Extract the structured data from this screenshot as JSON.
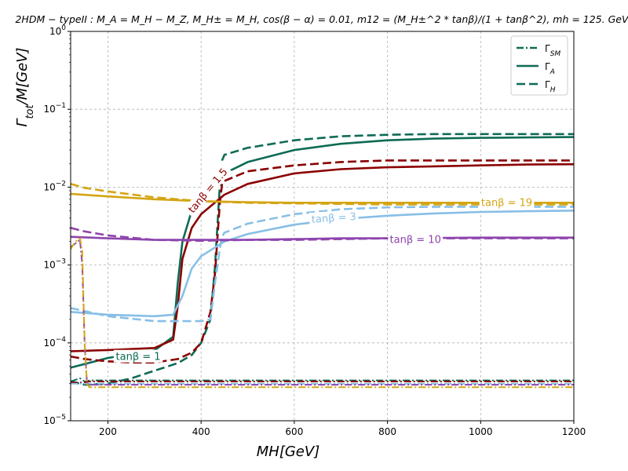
{
  "chart_data": {
    "type": "line",
    "title": "2HDM − typeII : M_A = M_H − M_Z, M_H± = M_H, cos(β − α) = 0.01, m12 = (M_H±^2 * tanβ)/(1 + tanβ^2), mh = 125. GeV",
    "xlabel": "MH[GeV]",
    "ylabel": "Γ_tot / M [GeV]",
    "xlim": [
      120,
      1200
    ],
    "ylim": [
      1e-05,
      1
    ],
    "yscale": "log",
    "grid": true,
    "legend_position": "top-right",
    "x_ticks": [
      200,
      400,
      600,
      800,
      1000,
      1200
    ],
    "y_ticks": [
      {
        "value": 1e-05,
        "base": "10",
        "exp": "−5"
      },
      {
        "value": 0.0001,
        "base": "10",
        "exp": "−4"
      },
      {
        "value": 0.001,
        "base": "10",
        "exp": "−3"
      },
      {
        "value": 0.01,
        "base": "10",
        "exp": "−2"
      },
      {
        "value": 0.1,
        "base": "10",
        "exp": "−1"
      },
      {
        "value": 1,
        "base": "10",
        "exp": "0"
      }
    ],
    "legend": [
      {
        "style": "dashdot",
        "base": "Γ",
        "sub": "SM"
      },
      {
        "style": "solid",
        "base": "Γ",
        "sub": "A"
      },
      {
        "style": "dashed",
        "base": "Γ",
        "sub": "H"
      }
    ],
    "series": [
      {
        "tanb": "1",
        "color": "#0e6b55",
        "A": {
          "x": [
            120,
            200,
            300,
            340,
            350,
            360,
            380,
            400,
            450,
            500,
            600,
            700,
            800,
            900,
            1000,
            1100,
            1200
          ],
          "y": [
            4.8e-05,
            6.4e-05,
            8e-05,
            0.00012,
            0.0006,
            0.002,
            0.005,
            0.008,
            0.015,
            0.021,
            0.03,
            0.036,
            0.04,
            0.042,
            0.043,
            0.0435,
            0.044
          ]
        },
        "H": {
          "x": [
            120,
            150,
            200,
            250,
            300,
            350,
            380,
            400,
            420,
            430,
            440,
            445,
            450,
            500,
            600,
            700,
            800,
            900,
            1000,
            1100,
            1200
          ],
          "y": [
            3.2e-05,
            2.9e-05,
            3e-05,
            3.5e-05,
            4.4e-05,
            5.5e-05,
            7e-05,
            0.0001,
            0.0002,
            0.001,
            0.01,
            0.022,
            0.026,
            0.032,
            0.04,
            0.045,
            0.047,
            0.048,
            0.048,
            0.048,
            0.048
          ]
        },
        "SM": {
          "x": [
            120,
            140,
            150,
            155,
            160,
            200,
            400,
            600,
            800,
            1000,
            1200
          ],
          "y": [
            3.2e-05,
            3.5e-05,
            3.2e-05,
            3.2e-05,
            3.3e-05,
            3.3e-05,
            3.3e-05,
            3.3e-05,
            3.3e-05,
            3.3e-05,
            3.3e-05
          ]
        }
      },
      {
        "tanb": "1.5",
        "color": "#8b0000",
        "A": {
          "x": [
            120,
            200,
            300,
            340,
            350,
            360,
            380,
            400,
            450,
            500,
            600,
            700,
            800,
            900,
            1000,
            1100,
            1200
          ],
          "y": [
            7.8e-05,
            8.1e-05,
            8.6e-05,
            0.00011,
            0.0003,
            0.0012,
            0.003,
            0.0045,
            0.008,
            0.011,
            0.015,
            0.017,
            0.018,
            0.0185,
            0.019,
            0.0195,
            0.0197
          ]
        },
        "H": {
          "x": [
            120,
            150,
            200,
            250,
            300,
            350,
            380,
            400,
            420,
            430,
            440,
            445,
            450,
            500,
            600,
            700,
            800,
            900,
            1000,
            1100,
            1200
          ],
          "y": [
            6.7e-05,
            6.2e-05,
            5.8e-05,
            5.6e-05,
            5.6e-05,
            6.2e-05,
            7.5e-05,
            0.0001,
            0.00025,
            0.0008,
            0.006,
            0.011,
            0.012,
            0.016,
            0.019,
            0.021,
            0.022,
            0.022,
            0.022,
            0.022,
            0.022
          ]
        },
        "SM": {
          "x": [
            120,
            150,
            160,
            200,
            400,
            600,
            800,
            1000,
            1200
          ],
          "y": [
            3.1e-05,
            3.1e-05,
            3.2e-05,
            3.2e-05,
            3.2e-05,
            3.2e-05,
            3.2e-05,
            3.2e-05,
            3.2e-05
          ]
        }
      },
      {
        "tanb": "3",
        "color": "#87bfe6",
        "A": {
          "x": [
            120,
            200,
            300,
            340,
            360,
            380,
            400,
            450,
            500,
            600,
            700,
            800,
            900,
            1000,
            1100,
            1200
          ],
          "y": [
            0.00025,
            0.00023,
            0.00022,
            0.00023,
            0.0004,
            0.0009,
            0.0013,
            0.002,
            0.0025,
            0.0033,
            0.0039,
            0.0043,
            0.0046,
            0.0048,
            0.0049,
            0.005
          ]
        },
        "H": {
          "x": [
            120,
            200,
            300,
            400,
            420,
            430,
            440,
            445,
            450,
            500,
            600,
            700,
            800,
            900,
            1000,
            1100,
            1200
          ],
          "y": [
            0.00028,
            0.00022,
            0.00019,
            0.00019,
            0.0002,
            0.0006,
            0.0016,
            0.0023,
            0.0026,
            0.0034,
            0.0045,
            0.0052,
            0.0055,
            0.0056,
            0.0056,
            0.0056,
            0.0056
          ]
        },
        "SM": {
          "x": [
            120,
            150,
            160,
            200,
            400,
            600,
            800,
            1000,
            1200
          ],
          "y": [
            3e-05,
            3e-05,
            3e-05,
            3e-05,
            3e-05,
            3e-05,
            3e-05,
            3e-05,
            3e-05
          ]
        }
      },
      {
        "tanb": "10",
        "color": "#8e44ad",
        "A": {
          "x": [
            120,
            200,
            300,
            400,
            500,
            600,
            700,
            800,
            1000,
            1200
          ],
          "y": [
            0.0023,
            0.0022,
            0.0021,
            0.0021,
            0.0021,
            0.00215,
            0.0022,
            0.0022,
            0.00225,
            0.00225
          ]
        },
        "H": {
          "x": [
            120,
            150,
            200,
            300,
            400,
            500,
            600,
            700,
            800,
            1000,
            1200
          ],
          "y": [
            0.003,
            0.0027,
            0.0024,
            0.0021,
            0.00205,
            0.0021,
            0.0021,
            0.00215,
            0.0022,
            0.0022,
            0.0022
          ]
        },
        "SM": {
          "x": [
            120,
            140,
            145,
            150,
            155,
            160,
            200,
            400,
            600,
            800,
            1000,
            1200
          ],
          "y": [
            0.0017,
            0.0021,
            0.001,
            0.0001,
            3e-05,
            2.9e-05,
            2.9e-05,
            2.9e-05,
            2.9e-05,
            2.9e-05,
            2.9e-05,
            2.9e-05
          ]
        }
      },
      {
        "tanb": "19",
        "color": "#d4a514",
        "A": {
          "x": [
            120,
            200,
            300,
            400,
            500,
            600,
            700,
            800,
            900,
            1000,
            1100,
            1200
          ],
          "y": [
            0.0082,
            0.0076,
            0.007,
            0.0066,
            0.0064,
            0.0063,
            0.0063,
            0.0063,
            0.0063,
            0.0063,
            0.0063,
            0.0063
          ]
        },
        "H": {
          "x": [
            120,
            150,
            200,
            300,
            400,
            500,
            600,
            700,
            800,
            900,
            1000,
            1100,
            1200
          ],
          "y": [
            0.011,
            0.0098,
            0.0088,
            0.0074,
            0.0066,
            0.0063,
            0.0062,
            0.0061,
            0.006,
            0.006,
            0.006,
            0.006,
            0.006
          ]
        },
        "SM": {
          "x": [
            120,
            130,
            140,
            145,
            150,
            155,
            160,
            200,
            400,
            600,
            800,
            1000,
            1200
          ],
          "y": [
            0.0016,
            0.002,
            0.0022,
            0.0015,
            0.0001,
            3e-05,
            2.7e-05,
            2.7e-05,
            2.7e-05,
            2.7e-05,
            2.7e-05,
            2.7e-05,
            2.7e-05
          ]
        }
      }
    ],
    "annotations": [
      {
        "text": "tanβ = 1",
        "x": 265,
        "y": 6.6e-05,
        "rotate": 0,
        "color": "#0e6b55"
      },
      {
        "text": "tanβ = 1.5",
        "x": 415,
        "y": 0.009,
        "rotate": -50,
        "color": "#8b0000"
      },
      {
        "text": "tanβ = 3",
        "x": 685,
        "y": 0.004,
        "rotate": -4,
        "color": "#87bfe6"
      },
      {
        "text": "tanβ = 10",
        "x": 860,
        "y": 0.0021,
        "rotate": 0,
        "color": "#8e44ad"
      },
      {
        "text": "tanβ = 19",
        "x": 1056,
        "y": 0.0063,
        "rotate": 0,
        "color": "#d4a514"
      }
    ]
  }
}
